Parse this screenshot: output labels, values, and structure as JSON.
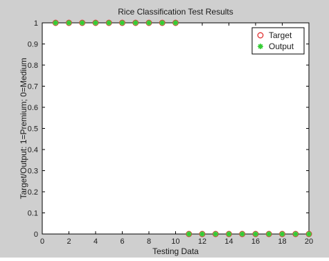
{
  "chart_data": {
    "type": "scatter",
    "title": "Rice Classification Test Results",
    "xlabel": "Testing Data",
    "ylabel": "Target/Output: 1=Premium; 0=Medium",
    "xlim": [
      0,
      20
    ],
    "ylim": [
      0,
      1
    ],
    "xticks": [
      0,
      2,
      4,
      6,
      8,
      10,
      12,
      14,
      16,
      18,
      20
    ],
    "yticks": [
      0,
      0.1,
      0.2,
      0.3,
      0.4,
      0.5,
      0.6,
      0.7,
      0.8,
      0.9,
      1
    ],
    "xtick_labels": [
      "0",
      "2",
      "4",
      "6",
      "8",
      "10",
      "12",
      "14",
      "16",
      "18",
      "20"
    ],
    "ytick_labels": [
      "0",
      "0.1",
      "0.2",
      "0.3",
      "0.4",
      "0.5",
      "0.6",
      "0.7",
      "0.8",
      "0.9",
      "1"
    ],
    "grid": false,
    "legend_position": "top-right",
    "series": [
      {
        "name": "Target",
        "marker": "circle",
        "color": "#e03030",
        "x": [
          1,
          2,
          3,
          4,
          5,
          6,
          7,
          8,
          9,
          10,
          11,
          12,
          13,
          14,
          15,
          16,
          17,
          18,
          19,
          20
        ],
        "y": [
          1,
          1,
          1,
          1,
          1,
          1,
          1,
          1,
          1,
          1,
          0,
          0,
          0,
          0,
          0,
          0,
          0,
          0,
          0,
          0
        ]
      },
      {
        "name": "Output",
        "marker": "asterisk",
        "color": "#33cc33",
        "x": [
          1,
          2,
          3,
          4,
          5,
          6,
          7,
          8,
          9,
          10,
          11,
          12,
          13,
          14,
          15,
          16,
          17,
          18,
          19,
          20
        ],
        "y": [
          1,
          1,
          1,
          1,
          1,
          1,
          1,
          1,
          1,
          1,
          0,
          0,
          0,
          0,
          0,
          0,
          0,
          0,
          0,
          0
        ]
      }
    ]
  }
}
